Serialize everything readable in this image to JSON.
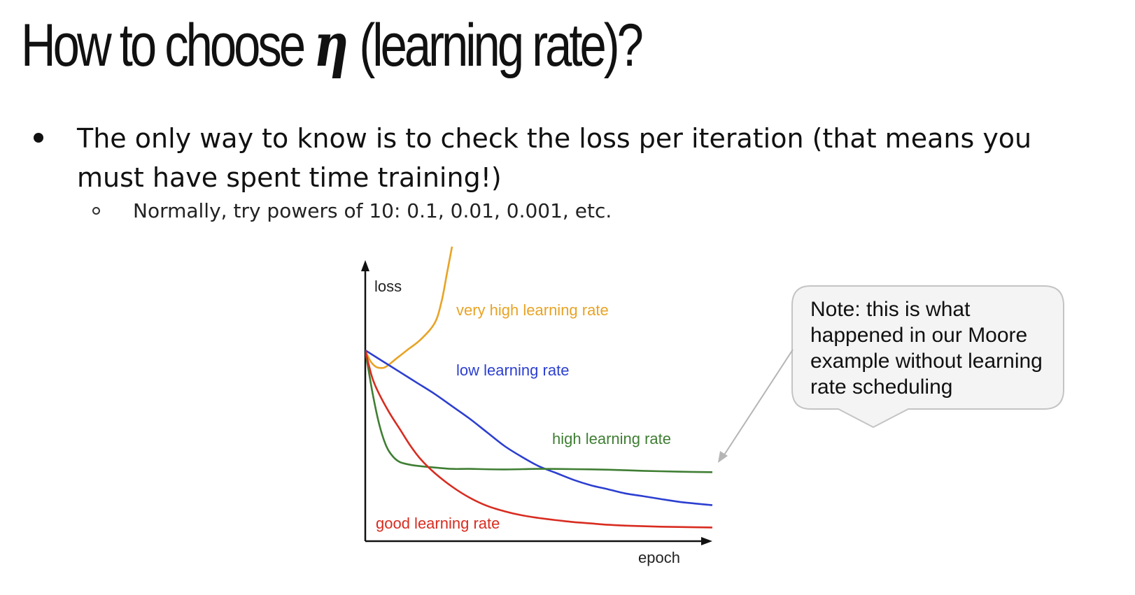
{
  "slide": {
    "title_prefix": "How to choose",
    "title_symbol": "η",
    "title_suffix": "(learning rate)?",
    "bullet": "The only way to know is to check the loss per iteration (that means you must have spent time training!)",
    "sub_bullet": "Normally, try powers of 10: 0.1, 0.01, 0.001, etc."
  },
  "chart_data": {
    "type": "line",
    "xlabel": "epoch",
    "ylabel": "loss",
    "xlim": [
      0,
      100
    ],
    "ylim": [
      0,
      100
    ],
    "grid": false,
    "series": [
      {
        "name": "very high learning rate",
        "color": "#e8a325",
        "x": [
          0,
          1.5,
          3,
          4.5,
          6,
          9,
          12,
          16,
          20,
          22,
          23.5,
          25
        ],
        "y": [
          70,
          66,
          64,
          63.5,
          64,
          67,
          70,
          74,
          80,
          88,
          98,
          108
        ]
      },
      {
        "name": "low learning rate",
        "color": "#2c3fd0",
        "x": [
          0,
          5,
          10,
          15,
          20,
          25,
          30,
          35,
          40,
          45,
          50,
          55,
          60,
          65,
          70,
          75,
          80,
          85,
          90,
          95,
          100
        ],
        "y": [
          70,
          66,
          62,
          58,
          54,
          49.5,
          45,
          40,
          35,
          31,
          27.5,
          25,
          22.5,
          20.5,
          19,
          17.5,
          16.5,
          15.5,
          14.5,
          13.8,
          13.2
        ]
      },
      {
        "name": "high learning rate",
        "color": "#3f7e33",
        "x": [
          0,
          2,
          4,
          6,
          8,
          10,
          13,
          16,
          20,
          25,
          30,
          40,
          50,
          60,
          70,
          80,
          90,
          100
        ],
        "y": [
          70,
          55,
          43,
          35,
          31,
          29,
          28,
          27.5,
          27,
          26.5,
          26.5,
          26.3,
          26.5,
          26.4,
          26.2,
          25.8,
          25.5,
          25.3
        ]
      },
      {
        "name": "good learning rate",
        "color": "#d82c20",
        "x": [
          0,
          2,
          4,
          7,
          10,
          13,
          16,
          20,
          25,
          30,
          35,
          40,
          45,
          50,
          55,
          60,
          65,
          70,
          75,
          80,
          85,
          90,
          100
        ],
        "y": [
          70,
          60,
          54,
          47,
          41,
          35,
          30,
          25,
          20,
          16,
          13,
          11,
          9.5,
          8.5,
          7.7,
          7,
          6.5,
          6,
          5.7,
          5.5,
          5.3,
          5.2,
          5
        ]
      }
    ]
  },
  "callout": {
    "text": "Note: this is what happened in our Moore example without learning rate scheduling"
  }
}
